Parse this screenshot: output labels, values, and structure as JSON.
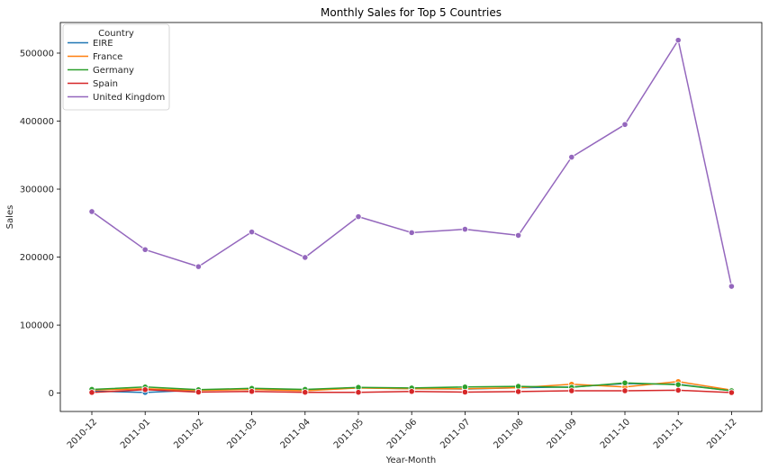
{
  "chart_data": {
    "type": "line",
    "title": "Monthly Sales for Top 5 Countries",
    "xlabel": "Year-Month",
    "ylabel": "Sales",
    "categories": [
      "2010-12",
      "2011-01",
      "2011-02",
      "2011-03",
      "2011-04",
      "2011-05",
      "2011-06",
      "2011-07",
      "2011-08",
      "2011-09",
      "2011-10",
      "2011-11",
      "2011-12"
    ],
    "yticks": [
      0,
      100000,
      200000,
      300000,
      400000,
      500000
    ],
    "ylim": [
      -27000,
      545000
    ],
    "grid": false,
    "legend": {
      "title": "Country",
      "placement": "top-left"
    },
    "series": [
      {
        "name": "EIRE",
        "color": "#1f77b4",
        "values": [
          3000,
          1000,
          4500,
          5500,
          4000,
          8000,
          6500,
          6000,
          8000,
          9000,
          14000,
          13000,
          3500
        ]
      },
      {
        "name": "France",
        "color": "#ff7f0e",
        "values": [
          4500,
          6500,
          4000,
          5500,
          3500,
          7500,
          6500,
          6500,
          8000,
          13000,
          9000,
          17000,
          4500
        ]
      },
      {
        "name": "Germany",
        "color": "#2ca02c",
        "values": [
          5500,
          9000,
          5000,
          7000,
          5500,
          8500,
          7500,
          9000,
          10000,
          8500,
          15000,
          12500,
          3500
        ]
      },
      {
        "name": "Spain",
        "color": "#d62728",
        "values": [
          1000,
          5000,
          1500,
          2500,
          1200,
          1200,
          2500,
          1500,
          2200,
          3500,
          3500,
          4200,
          800
        ]
      },
      {
        "name": "United Kingdom",
        "color": "#9467bd",
        "values": [
          267000,
          211000,
          186000,
          237000,
          199500,
          259500,
          236000,
          241000,
          232000,
          347000,
          395000,
          519000,
          157000
        ]
      }
    ]
  }
}
